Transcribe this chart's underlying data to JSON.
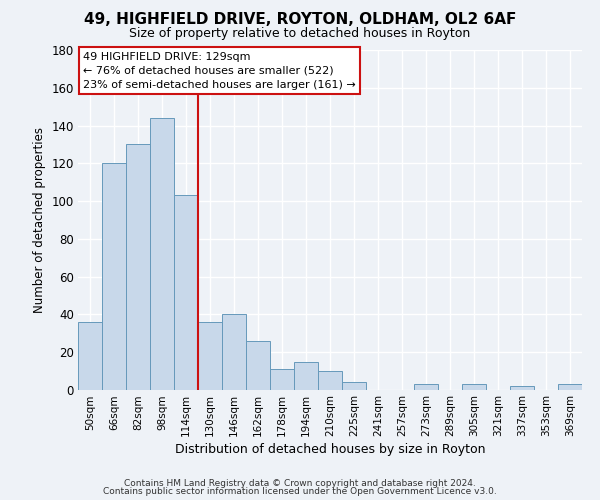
{
  "title": "49, HIGHFIELD DRIVE, ROYTON, OLDHAM, OL2 6AF",
  "subtitle": "Size of property relative to detached houses in Royton",
  "xlabel": "Distribution of detached houses by size in Royton",
  "ylabel": "Number of detached properties",
  "bin_labels": [
    "50sqm",
    "66sqm",
    "82sqm",
    "98sqm",
    "114sqm",
    "130sqm",
    "146sqm",
    "162sqm",
    "178sqm",
    "194sqm",
    "210sqm",
    "225sqm",
    "241sqm",
    "257sqm",
    "273sqm",
    "289sqm",
    "305sqm",
    "321sqm",
    "337sqm",
    "353sqm",
    "369sqm"
  ],
  "bar_heights": [
    36,
    120,
    130,
    144,
    103,
    36,
    40,
    26,
    11,
    15,
    10,
    4,
    0,
    0,
    3,
    0,
    3,
    0,
    2,
    0,
    3
  ],
  "bar_color": "#c8d8ea",
  "bar_edge_color": "#6699bb",
  "ylim": [
    0,
    180
  ],
  "yticks": [
    0,
    20,
    40,
    60,
    80,
    100,
    120,
    140,
    160,
    180
  ],
  "vline_after_bar": 4,
  "annotation_title": "49 HIGHFIELD DRIVE: 129sqm",
  "annotation_line1": "← 76% of detached houses are smaller (522)",
  "annotation_line2": "23% of semi-detached houses are larger (161) →",
  "annotation_box_facecolor": "#ffffff",
  "annotation_box_edgecolor": "#cc1111",
  "vline_color": "#cc1111",
  "footer1": "Contains HM Land Registry data © Crown copyright and database right 2024.",
  "footer2": "Contains public sector information licensed under the Open Government Licence v3.0.",
  "bg_color": "#eef2f7",
  "grid_color": "#ffffff",
  "title_fontsize": 11,
  "subtitle_fontsize": 9
}
